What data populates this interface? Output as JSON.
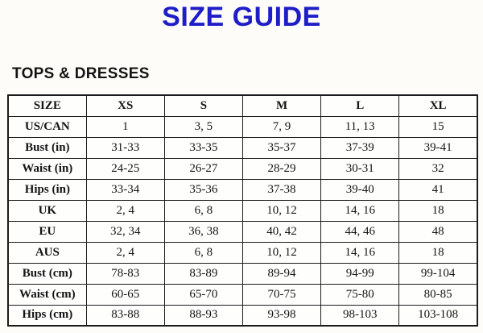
{
  "page": {
    "title": "SIZE GUIDE",
    "section_heading": "TOPS & DRESSES",
    "title_color": "#1e1ec8",
    "border_color": "#1c1c1c",
    "background_color": "#fdfcf9"
  },
  "size_table": {
    "columns": [
      "SIZE",
      "XS",
      "S",
      "M",
      "L",
      "XL"
    ],
    "rows": [
      {
        "label": "US/CAN",
        "values": [
          "1",
          "3, 5",
          "7, 9",
          "11, 13",
          "15"
        ]
      },
      {
        "label": "Bust (in)",
        "values": [
          "31-33",
          "33-35",
          "35-37",
          "37-39",
          "39-41"
        ]
      },
      {
        "label": "Waist (in)",
        "values": [
          "24-25",
          "26-27",
          "28-29",
          "30-31",
          "32"
        ]
      },
      {
        "label": "Hips (in)",
        "values": [
          "33-34",
          "35-36",
          "37-38",
          "39-40",
          "41"
        ]
      },
      {
        "label": "UK",
        "values": [
          "2, 4",
          "6, 8",
          "10, 12",
          "14, 16",
          "18"
        ]
      },
      {
        "label": "EU",
        "values": [
          "32, 34",
          "36, 38",
          "40, 42",
          "44, 46",
          "48"
        ]
      },
      {
        "label": "AUS",
        "values": [
          "2, 4",
          "6, 8",
          "10, 12",
          "14, 16",
          "18"
        ]
      },
      {
        "label": "Bust (cm)",
        "values": [
          "78-83",
          "83-89",
          "89-94",
          "94-99",
          "99-104"
        ]
      },
      {
        "label": "Waist (cm)",
        "values": [
          "60-65",
          "65-70",
          "70-75",
          "75-80",
          "80-85"
        ]
      },
      {
        "label": "Hips (cm)",
        "values": [
          "83-88",
          "88-93",
          "93-98",
          "98-103",
          "103-108"
        ]
      }
    ]
  }
}
